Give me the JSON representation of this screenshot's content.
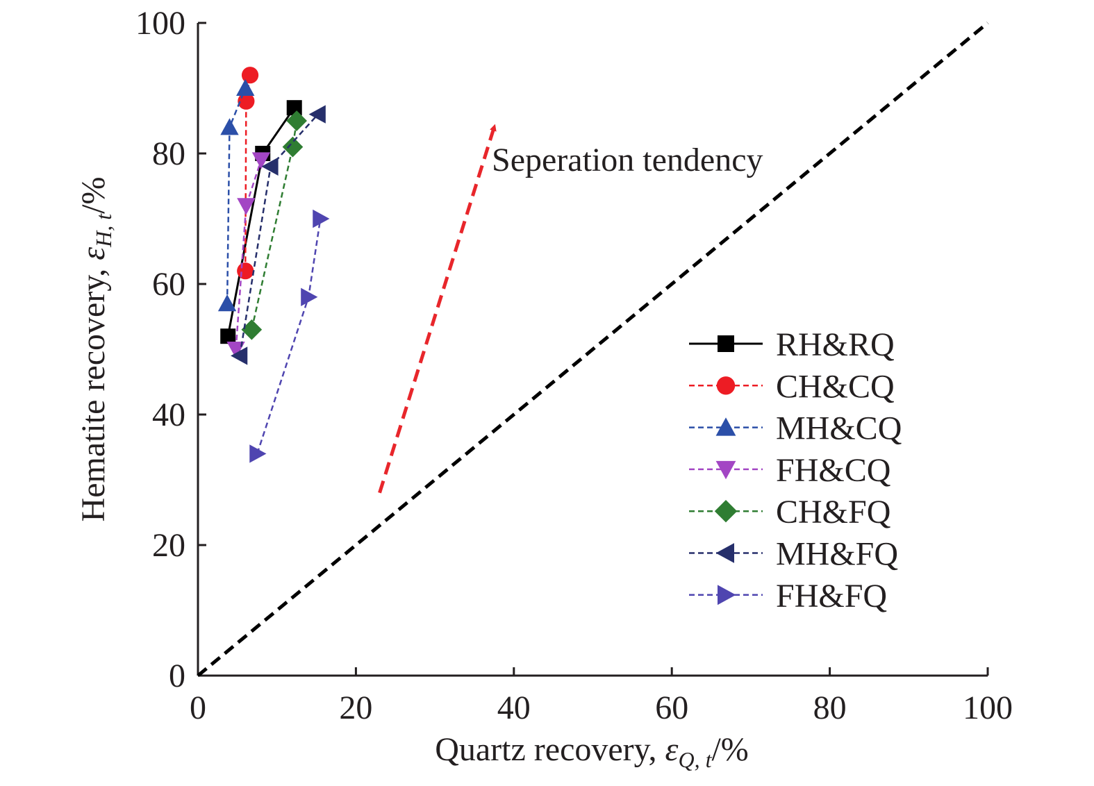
{
  "chart_data": {
    "type": "scatter",
    "xlabel": {
      "prefix": "Quartz recovery, ",
      "symbol": "ε",
      "subscript": "Q, t",
      "suffix": "/%"
    },
    "ylabel": {
      "prefix": "Hematite recovery, ",
      "symbol": "ε",
      "subscript": "H, t",
      "suffix": "/%"
    },
    "xlim": [
      0,
      100
    ],
    "ylim": [
      0,
      100
    ],
    "xticks": [
      "0",
      "20",
      "40",
      "60",
      "80",
      "100"
    ],
    "yticks": [
      "0",
      "20",
      "40",
      "60",
      "80",
      "100"
    ],
    "grid": false,
    "legend_position": "lower-right",
    "diagonal": {
      "x": [
        0,
        100
      ],
      "y": [
        0,
        100
      ],
      "color": "#000000",
      "style": "dashed"
    },
    "annotation": {
      "text": "Seperation tendency",
      "arrow_from": [
        23,
        28
      ],
      "arrow_to": [
        37.5,
        84
      ],
      "color": "#e8262b"
    },
    "series": [
      {
        "name": "RH&RQ",
        "marker": "square",
        "color": "#000000",
        "line": "solid",
        "x": [
          3.8,
          8.2,
          12.2
        ],
        "y": [
          52,
          80,
          87
        ]
      },
      {
        "name": "CH&CQ",
        "marker": "circle",
        "color": "#ed1c24",
        "line": "dashed",
        "x": [
          6.0,
          6.1,
          6.6
        ],
        "y": [
          62,
          88,
          92
        ]
      },
      {
        "name": "MH&CQ",
        "marker": "triangle-up",
        "color": "#2b4fa8",
        "line": "dashed",
        "x": [
          3.7,
          4.0,
          6.0
        ],
        "y": [
          57,
          84,
          90
        ]
      },
      {
        "name": "FH&CQ",
        "marker": "triangle-down",
        "color": "#a346c4",
        "line": "dashed",
        "x": [
          4.8,
          6.1,
          8.0
        ],
        "y": [
          50,
          72,
          79
        ]
      },
      {
        "name": "CH&FQ",
        "marker": "diamond",
        "color": "#2f7d32",
        "line": "dashed",
        "x": [
          6.8,
          12.0,
          12.5
        ],
        "y": [
          53,
          81,
          85
        ]
      },
      {
        "name": "MH&FQ",
        "marker": "triangle-left",
        "color": "#262f6b",
        "line": "dashed",
        "x": [
          5.3,
          9.2,
          15.2
        ],
        "y": [
          49,
          78,
          86
        ]
      },
      {
        "name": "FH&FQ",
        "marker": "triangle-right",
        "color": "#4f45b0",
        "line": "dashed",
        "x": [
          7.5,
          14.0,
          15.5
        ],
        "y": [
          34,
          58,
          70
        ]
      }
    ]
  }
}
